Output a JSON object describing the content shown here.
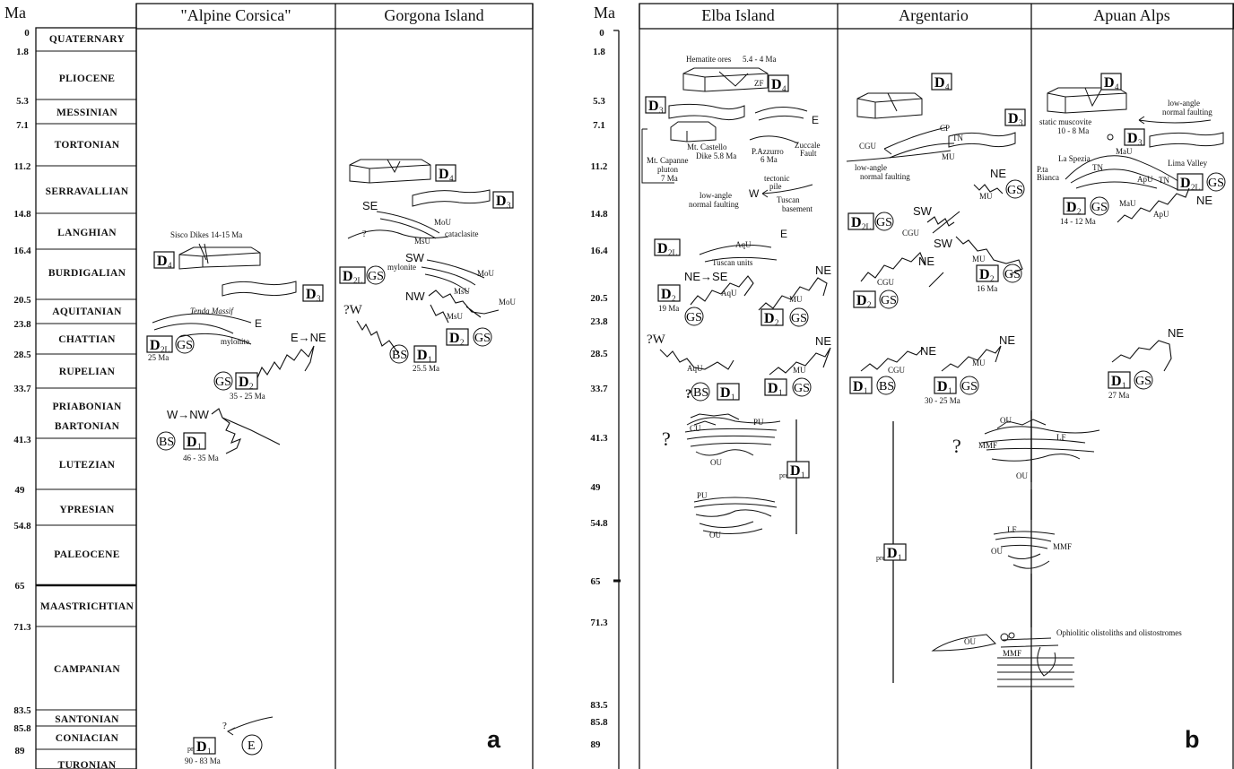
{
  "panel_a": {
    "ma_header": "Ma",
    "columns": [
      "\"Alpine Corsica\"",
      "Gorgona Island"
    ],
    "letter": "a",
    "stages": [
      {
        "name": "QUATERNARY"
      },
      {
        "name": "PLIOCENE"
      },
      {
        "name": "MESSINIAN"
      },
      {
        "name": "TORTONIAN"
      },
      {
        "name": "SERRAVALLIAN"
      },
      {
        "name": "LANGHIAN"
      },
      {
        "name": "BURDIGALIAN"
      },
      {
        "name": "AQUITANIAN"
      },
      {
        "name": "CHATTIAN"
      },
      {
        "name": "RUPELIAN"
      },
      {
        "name": "PRIABONIAN"
      },
      {
        "name": "BARTONIAN"
      },
      {
        "name": "LUTEZIAN"
      },
      {
        "name": "YPRESIAN"
      },
      {
        "name": "PALEOCENE"
      },
      {
        "name": "MAASTRICHTIAN"
      },
      {
        "name": "CAMPANIAN"
      },
      {
        "name": "SANTONIAN"
      },
      {
        "name": "CONIACIAN"
      },
      {
        "name": "TURONIAN"
      }
    ],
    "ages": [
      "0",
      "1.8",
      "5.3",
      "7.1",
      "11.2",
      "14.8",
      "16.4",
      "20.5",
      "23.8",
      "28.5",
      "33.7",
      "41.3",
      "49",
      "54.8",
      "65",
      "71.3",
      "83.5",
      "85.8",
      "89"
    ],
    "corsica": {
      "d4": "D",
      "d4sub": "4",
      "dikes": "Sisco Dikes 14-15 Ma",
      "d3": "D",
      "d3sub": "3",
      "tenda": "Tenda Massif",
      "e": "E",
      "d21": "D",
      "d21sub": "2L",
      "gs1": "GS",
      "age1": "25 Ma",
      "mylonite": "mylonite",
      "ene": "E→NE",
      "gs2": "GS",
      "d2": "D",
      "d2sub": "2",
      "age2": "35 - 25 Ma",
      "wnw": "W→NW",
      "bs": "BS",
      "d1": "D",
      "d1sub": "1",
      "age3": "46 - 35 Ma",
      "pre": "pre",
      "pd1": "D",
      "pd1sub": "1",
      "age4": "90 - 83 Ma",
      "ec": "E",
      "q": "?"
    },
    "gorgona": {
      "d4": "D",
      "d4sub": "4",
      "d3": "D",
      "d3sub": "3",
      "se": "SE",
      "mou": "MoU",
      "cataclasite": "cataclasite",
      "msu": "MsU",
      "q": "?",
      "d21": "D",
      "d21sub": "2L",
      "gs1": "GS",
      "sw": "SW",
      "mylonite": "mylonite",
      "mou2": "MoU",
      "msu2": "MsU",
      "nw": "NW",
      "mou3": "MoU",
      "msu3": "MsU",
      "qw": "?W",
      "d2": "D",
      "d2sub": "2",
      "gs2": "GS",
      "bs": "BS",
      "d1": "D",
      "d1sub": "1",
      "age": "25.5 Ma"
    }
  },
  "panel_b": {
    "ma_header": "Ma",
    "columns": [
      "Elba Island",
      "Argentario",
      "Apuan Alps"
    ],
    "letter": "b",
    "ages": [
      "0",
      "1.8",
      "5.3",
      "7.1",
      "11.2",
      "14.8",
      "16.4",
      "20.5",
      "23.8",
      "28.5",
      "33.7",
      "41.3",
      "49",
      "54.8",
      "65",
      "71.3",
      "83.5",
      "85.8",
      "89"
    ],
    "elba": {
      "hematite": "Hematite ores",
      "hem_age": "5.4 - 4 Ma",
      "zf": "ZF",
      "d4": "D",
      "d4sub": "4",
      "d3": "D",
      "d3sub": "3",
      "e": "E",
      "castello": "Mt. Castello",
      "dike": "Dike 5.8 Ma",
      "azzurro": "P.Azzurro",
      "azz_age": "6 Ma",
      "zuccale": "Zuccale",
      "fault": "Fault",
      "capanne1": "Mt. Capanne",
      "capanne2": "pluton",
      "capanne3": "7 Ma",
      "tectonic": "tectonic",
      "pile": "pile",
      "w": "W",
      "tuscan": "Tuscan",
      "basement": "basement",
      "lowangle": "low-angle",
      "normal": "normal faulting",
      "d21": "D",
      "d21sub": "2L",
      "aqu": "AqU",
      "e2": "E",
      "tuscanunits": "Tuscan units",
      "nese": "NE→SE",
      "ne": "NE",
      "d2": "D",
      "d2sub": "2",
      "aqu2": "AqU",
      "mu": "MU",
      "age19": "19 Ma",
      "gs1": "GS",
      "d2b": "D",
      "d2bsub": "2",
      "gs2": "GS",
      "qw": "?W",
      "ne2": "NE",
      "aqu3": "AqU",
      "mu2": "MU",
      "q": "?",
      "bs": "BS",
      "d1": "D",
      "d1sub": "1",
      "d1b": "D",
      "d1bsub": "1",
      "gs3": "GS",
      "q2": "?",
      "cu": "CU",
      "pu": "PU",
      "ou": "OU",
      "pu2": "PU",
      "ou2": "OU",
      "pre": "pre",
      "pd1": "D",
      "pd1sub": "1"
    },
    "argentario": {
      "d4": "D",
      "d4sub": "4",
      "d3": "D",
      "d3sub": "3",
      "cp": "CP",
      "tn": "TN",
      "cgu": "CGU",
      "mu": "MU",
      "lowangle": "low-angle",
      "normal": "normal faulting",
      "ne": "NE",
      "mu2": "MU",
      "gs": "GS",
      "d21": "D",
      "d21sub": "2L",
      "gs2": "GS",
      "sw": "SW",
      "cgu2": "CGU",
      "sw2": "SW",
      "ne2": "NE",
      "cgu3": "CGU",
      "mu3": "MU",
      "d2": "D",
      "d2sub": "2",
      "gs3": "GS",
      "d2b": "D",
      "d2bsub": "2",
      "gs4": "GS",
      "age16": "16 Ma",
      "ne3": "NE",
      "ne4": "NE",
      "cgu4": "CGU",
      "mu4": "MU",
      "d1": "D",
      "d1sub": "1",
      "bs": "BS",
      "d1b": "D",
      "d1bsub": "1",
      "gs5": "GS",
      "age30": "30 - 25 Ma",
      "pre": "pre",
      "pd1": "D",
      "pd1sub": "1"
    },
    "apuan": {
      "d4": "D",
      "d4sub": "4",
      "lowangle": "low-angle",
      "normal": "normal faulting",
      "static": "static muscovite",
      "static_age": "10 - 8 Ma",
      "d3": "D",
      "d3sub": "3",
      "laspezia": "La Spezia",
      "tn": "TN",
      "mau": "MaU",
      "pta": "P.ta",
      "bianca": "Bianca",
      "apu": "ApU",
      "lima": "Lima Valley",
      "tn2": "TN",
      "d21": "D",
      "d21sub": "2L",
      "gs": "GS",
      "d2": "D",
      "d2sub": "2",
      "gs2": "GS",
      "mau2": "MaU",
      "ne": "NE",
      "apu2": "ApU",
      "age14": "14 - 12 Ma",
      "ne2": "NE",
      "d1": "D",
      "d1sub": "1",
      "gs3": "GS",
      "age27": "27 Ma",
      "q": "?",
      "ou": "OU",
      "mmf": "MMF",
      "lf": "LF",
      "ou2": "OU",
      "lf2": "LF",
      "ou3": "OU",
      "mmf2": "MMF",
      "ophio": "Ophiolitic olistoliths and olistostromes",
      "ou4": "OU",
      "mmf3": "MMF"
    }
  }
}
